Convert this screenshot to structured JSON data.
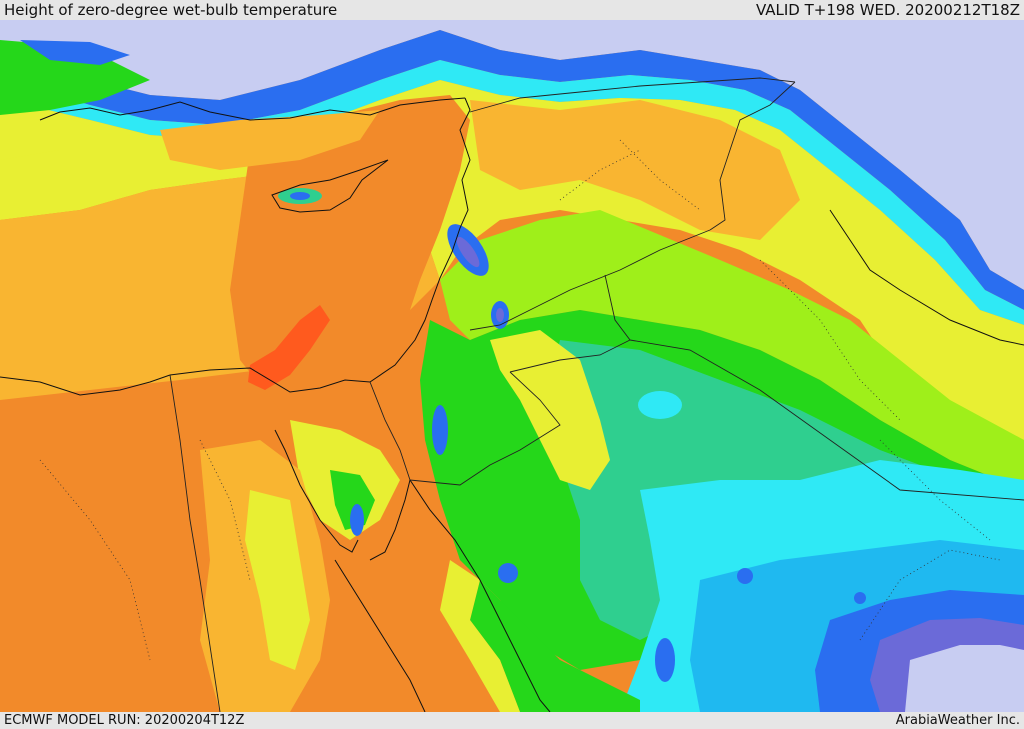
{
  "header": {
    "title": "Height of zero-degree wet-bulb temperature",
    "valid": "VALID T+198 WED. 20200212T18Z"
  },
  "footer": {
    "model_run": "ECMWF MODEL RUN: 20200204T12Z",
    "credit": "ArabiaWeather Inc."
  },
  "palette": {
    "orange": "#f28a2a",
    "red_orange": "#ff5a1e",
    "light_orange": "#f9b531",
    "yellow": "#e8ef33",
    "lime": "#9fef1a",
    "green": "#25d71a",
    "teal": "#2fcf8f",
    "cyan": "#2fe9f5",
    "sky": "#1fb9f0",
    "blue": "#2a6ef0",
    "violet": "#6b6ad8",
    "lavender": "#c8cdf2"
  }
}
